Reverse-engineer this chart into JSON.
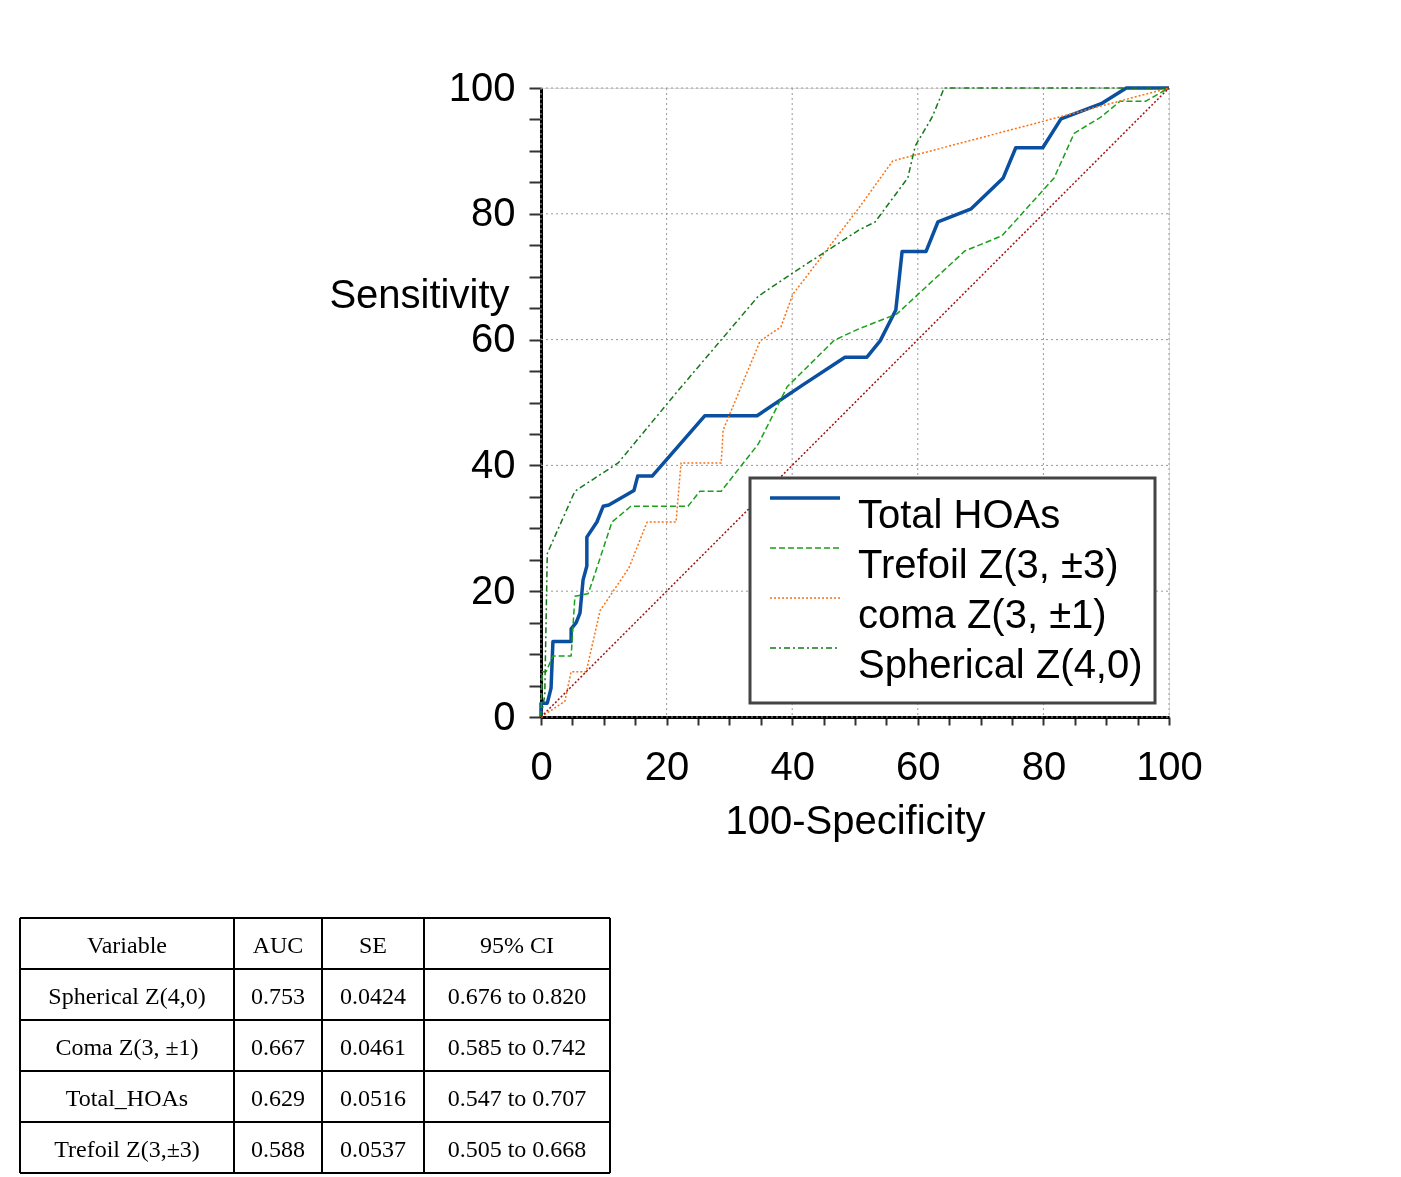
{
  "chart_data": [
    {
      "type": "line",
      "xlabel": "100-Specificity",
      "ylabel": "Sensitivity",
      "xlim": [
        0,
        100
      ],
      "ylim": [
        0,
        100
      ],
      "xticks": [
        0,
        {
          "value": 5,
          "label": null
        },
        {
          "value": 10,
          "label": null
        },
        {
          "value": 15,
          "label": null
        },
        20,
        {
          "value": 25,
          "label": null
        },
        {
          "value": 30,
          "label": null
        },
        {
          "value": 35,
          "label": null
        },
        40,
        {
          "value": 45,
          "label": null
        },
        {
          "value": 50,
          "label": null
        },
        {
          "value": 55,
          "label": null
        },
        60,
        {
          "value": 65,
          "label": null
        },
        {
          "value": 70,
          "label": null
        },
        {
          "value": 75,
          "label": null
        },
        80,
        {
          "value": 85,
          "label": null
        },
        {
          "value": 90,
          "label": null
        },
        {
          "value": 95,
          "label": null
        },
        100
      ],
      "yticks": [
        0,
        {
          "value": 5,
          "label": null
        },
        {
          "value": 10,
          "label": null
        },
        {
          "value": 15,
          "label": null
        },
        20,
        {
          "value": 25,
          "label": null
        },
        {
          "value": 30,
          "label": null
        },
        {
          "value": 35,
          "label": null
        },
        40,
        {
          "value": 45,
          "label": null
        },
        {
          "value": 50,
          "label": null
        },
        {
          "value": 55,
          "label": null
        },
        60,
        {
          "value": 65,
          "label": null
        },
        {
          "value": 70,
          "label": null
        },
        {
          "value": 75,
          "label": null
        },
        80,
        {
          "value": 85,
          "label": null
        },
        {
          "value": 90,
          "label": null
        },
        {
          "value": 95,
          "label": null
        },
        100
      ],
      "grid": true,
      "legend": "bottom right",
      "marker": "none",
      "series": [
        {
          "name": "Total HOAs",
          "color": "#0a4fa0",
          "line_style": "solid",
          "x": [
            0,
            0,
            1,
            1.6,
            1.9,
            4.8,
            4.8,
            5.6,
            6.2,
            6.7,
            7.3,
            7.3,
            8.9,
            9.9,
            10.8,
            14.8,
            15.4,
            17.7,
            21.8,
            26.1,
            34.4,
            41.7,
            48.4,
            51.9,
            54,
            56.5,
            57.5,
            61.3,
            63.2,
            68.5,
            73.6,
            75.6,
            79.9,
            82.8,
            89.2,
            93.2,
            100
          ],
          "values": [
            0,
            2.2,
            2.2,
            4.6,
            12,
            12,
            14,
            15,
            16.5,
            21.8,
            24,
            28.6,
            31,
            33.5,
            33.7,
            36,
            38.3,
            38.3,
            43,
            47.9,
            47.9,
            52.8,
            57.2,
            57.2,
            59.8,
            64.7,
            74,
            74,
            78.7,
            80.8,
            85.7,
            90.5,
            90.5,
            95.1,
            97.5,
            100,
            100
          ]
        },
        {
          "name": "Trefoil Z(3, ±3)",
          "color": "#1aa01a",
          "line_style": "dashed",
          "x": [
            0,
            0.2,
            0.8,
            1.9,
            4.8,
            5.4,
            7.5,
            8.1,
            11.3,
            14.3,
            23.4,
            25.3,
            28.7,
            34.6,
            39.2,
            46.7,
            50.6,
            56.7,
            67.5,
            73.4,
            81.7,
            84.9,
            89.2,
            92.2,
            96.3,
            100
          ],
          "values": [
            0,
            7.2,
            7.2,
            9.7,
            9.7,
            19.2,
            19.6,
            21.3,
            31,
            33.5,
            33.5,
            35.9,
            35.9,
            43.4,
            52.5,
            59.9,
            61.7,
            64.1,
            74.1,
            76.5,
            85.7,
            92.8,
            95.4,
            97.9,
            97.9,
            100
          ]
        },
        {
          "name": "coma Z(3, ±1)",
          "color": "#f97316",
          "line_style": "dotted",
          "x": [
            0,
            3.8,
            4.8,
            7.2,
            9.4,
            14,
            16.9,
            21.5,
            22.3,
            28.7,
            29,
            34.9,
            38.2,
            40.1,
            50.6,
            56,
            82.6,
            100
          ],
          "values": [
            0,
            2.5,
            7.2,
            7.2,
            16.9,
            23.7,
            31,
            31,
            40.4,
            40.4,
            45.6,
            59.8,
            62,
            67.2,
            80.9,
            88.4,
            95.4,
            100
          ]
        },
        {
          "name": "Spherical Z(4,0)",
          "color": "#16781a",
          "line_style": "dashdot",
          "x": [
            0,
            0.6,
            1,
            5.4,
            12.3,
            21.5,
            34.6,
            40.1,
            50.6,
            53.2,
            58.4,
            59.6,
            62.3,
            64.2,
            100
          ],
          "values": [
            0,
            3.5,
            26,
            35.9,
            40.4,
            51.5,
            66.9,
            70.6,
            77.4,
            78.7,
            85.7,
            90.8,
            95.4,
            100,
            100
          ]
        },
        {
          "color": "#a01010",
          "line_style": "dotted",
          "x": [
            0,
            100
          ],
          "values": [
            0,
            100
          ]
        }
      ]
    },
    {
      "type": "other",
      "annotations": [
        "Variable",
        "AUC",
        "SE",
        "95% CI",
        "Spherical Z(4,0)",
        "0.753",
        "0.0424",
        "0.676 to 0.820",
        "Coma Z(3, ±1)",
        "0.667",
        "0.0461",
        "0.585 to 0.742",
        "Total_HOAs",
        "0.629",
        "0.0516",
        "0.547 to 0.707",
        "Trefoil Z(3,±3)",
        "0.588",
        "0.0537",
        "0.505 to 0.668"
      ]
    }
  ]
}
